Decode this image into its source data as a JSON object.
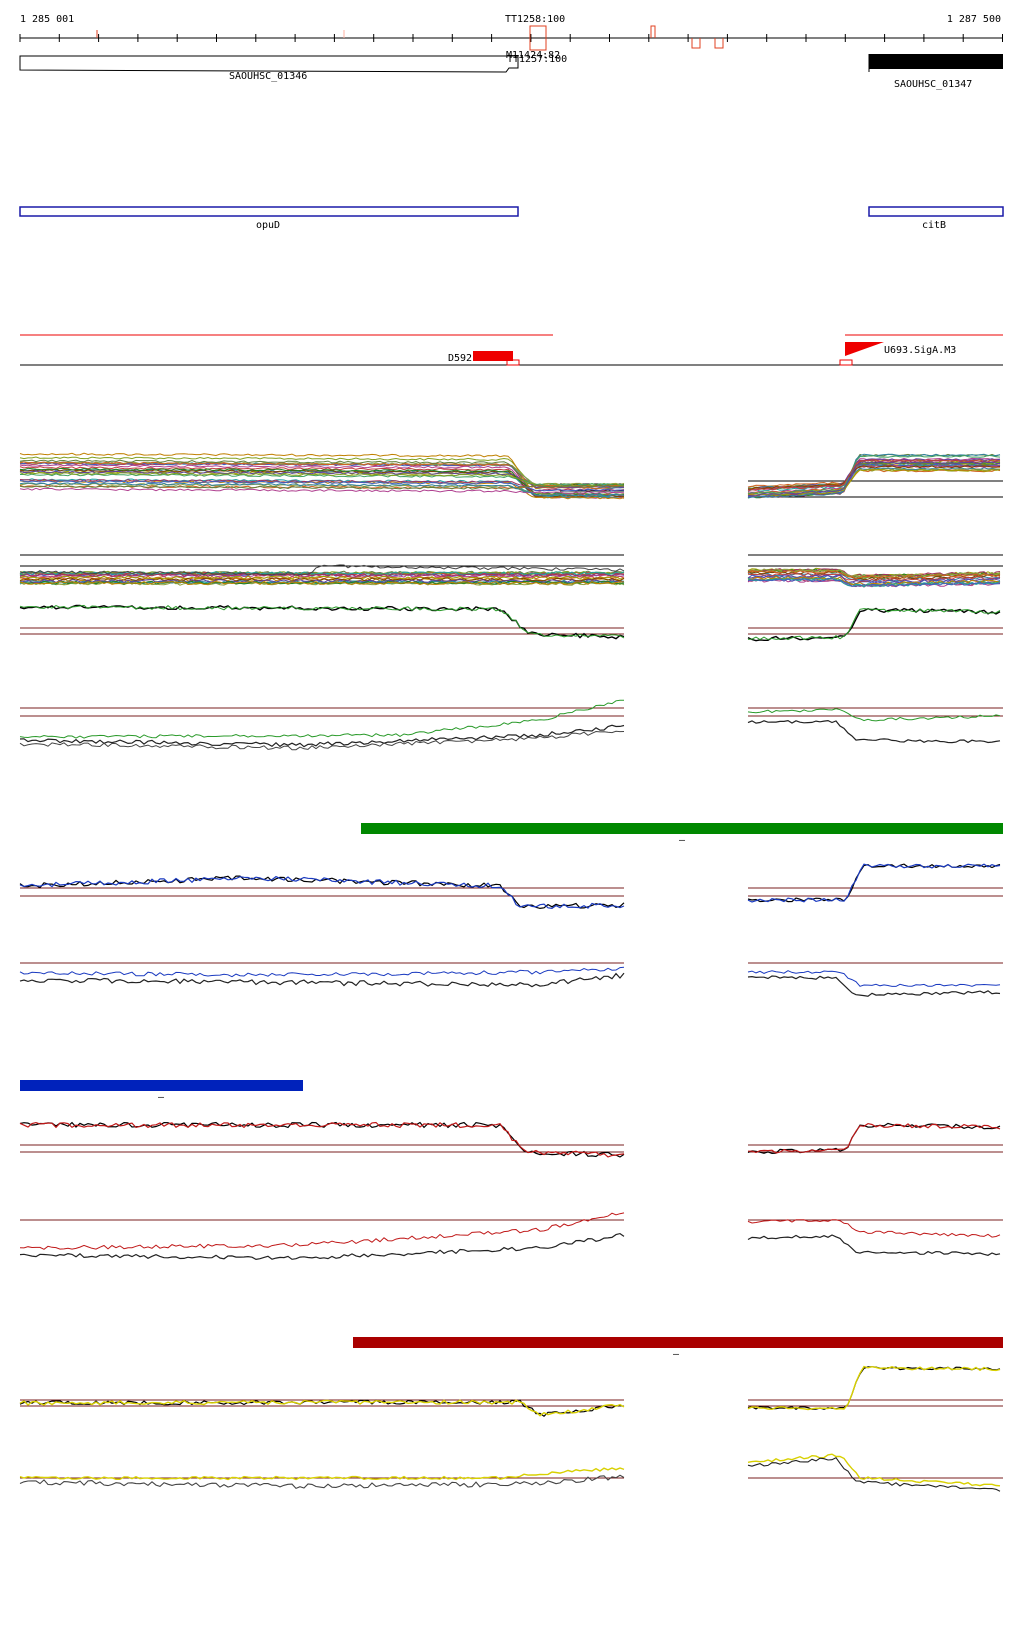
{
  "ruler": {
    "start_label": "1 285 001",
    "end_label": "1 287 500",
    "terminators": [
      "TT1258:100",
      "TT1257:100"
    ],
    "overlap_label": "M11424:82"
  },
  "genes": [
    {
      "name": "SAOUHSC_01346",
      "strand": "+"
    },
    {
      "name": "SAOUHSC_01347",
      "strand": "+"
    }
  ],
  "operons": [
    {
      "name": "opuD"
    },
    {
      "name": "citB"
    }
  ],
  "features": [
    {
      "name": "D592"
    },
    {
      "name": "U693.SigA.M3"
    }
  ],
  "condition_bars": [
    {
      "color": "#008800",
      "label": "–"
    },
    {
      "color": "#0022bb",
      "label": "–"
    },
    {
      "color": "#aa0000",
      "label": "–"
    }
  ],
  "colors": {
    "gene_fill": "#000000",
    "operon_stroke": "#1a1aa8",
    "feature": "#ee0000",
    "reference_line": "#7a1f1f",
    "ruler_marks": "#ff9a80"
  }
}
